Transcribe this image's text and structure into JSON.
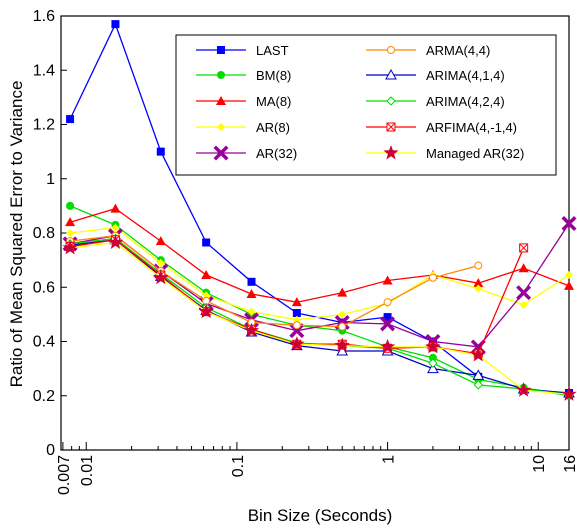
{
  "chart_data": {
    "type": "line",
    "xlabel": "Bin Size (Seconds)",
    "ylabel": "Ratio of Mean Squared Error to Variance",
    "x_scale": "log",
    "xlim": [
      0.0068,
      16
    ],
    "ylim": [
      0,
      1.6
    ],
    "x_ticks": [
      {
        "value": 0.007,
        "label": "0.007"
      },
      {
        "value": 0.01,
        "label": "0.01"
      },
      {
        "value": 0.1,
        "label": "0.1"
      },
      {
        "value": 1,
        "label": "1"
      },
      {
        "value": 10,
        "label": "10"
      },
      {
        "value": 16,
        "label": "16"
      }
    ],
    "y_ticks": [
      {
        "value": 0,
        "label": "0"
      },
      {
        "value": 0.2,
        "label": "0.2"
      },
      {
        "value": 0.4,
        "label": "0.4"
      },
      {
        "value": 0.6,
        "label": "0.6"
      },
      {
        "value": 0.8,
        "label": "0.8"
      },
      {
        "value": 1,
        "label": "1"
      },
      {
        "value": 1.2,
        "label": "1.2"
      },
      {
        "value": 1.4,
        "label": "1.4"
      },
      {
        "value": 1.6,
        "label": "1.6"
      }
    ],
    "legend_position": "top-right",
    "x": [
      0.0078125,
      0.015625,
      0.03125,
      0.0625,
      0.125,
      0.25,
      0.5,
      1,
      2,
      4,
      8,
      16
    ],
    "series": [
      {
        "name": "LAST",
        "color": "#0000ff",
        "marker": "square-filled",
        "values": [
          1.22,
          1.57,
          1.1,
          0.765,
          0.62,
          0.505,
          0.47,
          0.49,
          0.4,
          0.27,
          null,
          0.21
        ]
      },
      {
        "name": "BM(8)",
        "color": "#00dd00",
        "marker": "circle-filled",
        "values": [
          0.9,
          0.83,
          0.7,
          0.58,
          0.5,
          0.46,
          0.44,
          0.38,
          0.34,
          0.26,
          0.23,
          0.2
        ]
      },
      {
        "name": "MA(8)",
        "color": "#ff0000",
        "marker": "triangle-filled",
        "values": [
          0.84,
          0.89,
          0.77,
          0.645,
          0.575,
          0.545,
          0.58,
          0.625,
          0.645,
          0.615,
          0.67,
          0.605
        ]
      },
      {
        "name": "AR(8)",
        "color": "#ffff00",
        "marker": "diamond-filled",
        "values": [
          0.8,
          0.82,
          0.69,
          0.57,
          0.51,
          0.48,
          0.5,
          0.54,
          0.645,
          0.595,
          0.535,
          0.645
        ]
      },
      {
        "name": "AR(32)",
        "color": "#990099",
        "marker": "x-bold",
        "values": [
          0.76,
          0.79,
          0.66,
          0.54,
          0.48,
          0.44,
          0.47,
          0.465,
          0.4,
          0.38,
          0.58,
          0.835
        ]
      },
      {
        "name": "ARMA(4,4)",
        "color": "#ff8800",
        "marker": "circle-open",
        "values": [
          0.77,
          0.79,
          0.66,
          0.55,
          0.47,
          0.46,
          0.455,
          0.545,
          0.635,
          0.68,
          null,
          null
        ]
      },
      {
        "name": "ARIMA(4,1,4)",
        "color": "#0000cc",
        "marker": "triangle-open",
        "values": [
          0.755,
          0.775,
          0.64,
          0.515,
          0.435,
          0.385,
          0.365,
          0.365,
          0.3,
          0.275,
          0.225,
          0.21
        ]
      },
      {
        "name": "ARIMA(4,2,4)",
        "color": "#00dd00",
        "marker": "diamond-open",
        "values": [
          0.76,
          0.78,
          0.65,
          0.525,
          0.445,
          0.395,
          0.385,
          0.375,
          0.32,
          0.24,
          0.225,
          0.205
        ]
      },
      {
        "name": "ARFIMA(4,-1,4)",
        "color": "#ff0000",
        "marker": "x-box",
        "values": [
          0.75,
          0.775,
          0.645,
          0.51,
          0.445,
          0.39,
          0.39,
          0.375,
          0.38,
          0.355,
          0.745,
          null
        ]
      },
      {
        "name": "Managed AR(32)",
        "color": "#ffff00",
        "marker": "star",
        "marker_color": "#cc0033",
        "values": [
          0.745,
          0.765,
          0.635,
          0.51,
          0.44,
          0.39,
          0.385,
          0.38,
          0.38,
          0.35,
          0.22,
          0.205
        ]
      }
    ]
  }
}
